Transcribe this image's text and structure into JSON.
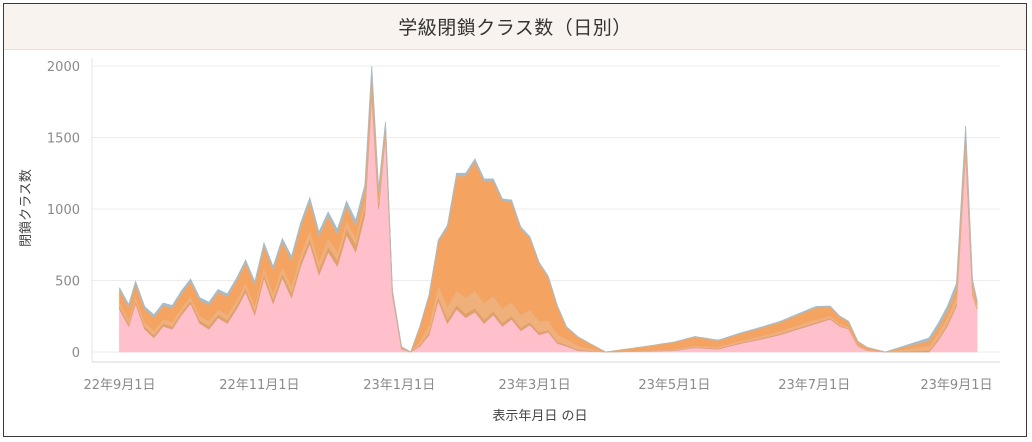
{
  "chart_data": {
    "type": "area",
    "title": "学級閉鎖クラス数（日別）",
    "xlabel": "表示年月日 の日",
    "ylabel": "閉鎖クラス数",
    "ylim": [
      0,
      2000
    ],
    "y_ticks": [
      "0",
      "500",
      "1000",
      "1500",
      "2000"
    ],
    "x_ticks": [
      "22年9月1日",
      "22年11月1日",
      "23年1月1日",
      "23年3月1日",
      "23年5月1日",
      "23年7月1日",
      "23年9月1日"
    ],
    "x_tick_dates": [
      "2022-09-01",
      "2022-11-01",
      "2023-01-01",
      "2023-03-01",
      "2023-05-01",
      "2023-07-01",
      "2023-09-01"
    ],
    "x_range": [
      "2022-08-20",
      "2023-09-20"
    ],
    "grid": true,
    "stacking": "stacked",
    "series_colors": [
      "#ffc0cb",
      "#e0a068",
      "#f0b07c",
      "#f4a460",
      "#a8bcc8"
    ],
    "series": [
      {
        "color": "#ffc0cb",
        "points": [
          [
            "2022-09-01",
            300
          ],
          [
            "2022-09-05",
            180
          ],
          [
            "2022-09-08",
            340
          ],
          [
            "2022-09-12",
            160
          ],
          [
            "2022-09-16",
            100
          ],
          [
            "2022-09-20",
            180
          ],
          [
            "2022-09-24",
            160
          ],
          [
            "2022-09-28",
            260
          ],
          [
            "2022-10-02",
            340
          ],
          [
            "2022-10-06",
            200
          ],
          [
            "2022-10-10",
            160
          ],
          [
            "2022-10-14",
            240
          ],
          [
            "2022-10-18",
            200
          ],
          [
            "2022-10-22",
            300
          ],
          [
            "2022-10-26",
            420
          ],
          [
            "2022-10-30",
            260
          ],
          [
            "2022-11-03",
            520
          ],
          [
            "2022-11-07",
            340
          ],
          [
            "2022-11-11",
            520
          ],
          [
            "2022-11-15",
            380
          ],
          [
            "2022-11-19",
            600
          ],
          [
            "2022-11-23",
            760
          ],
          [
            "2022-11-27",
            540
          ],
          [
            "2022-12-01",
            700
          ],
          [
            "2022-12-05",
            600
          ],
          [
            "2022-12-09",
            820
          ],
          [
            "2022-12-13",
            700
          ],
          [
            "2022-12-17",
            960
          ],
          [
            "2022-12-20",
            1800
          ],
          [
            "2022-12-23",
            1000
          ],
          [
            "2022-12-26",
            1520
          ],
          [
            "2022-12-29",
            400
          ],
          [
            "2023-01-02",
            20
          ],
          [
            "2023-01-06",
            0
          ],
          [
            "2023-01-10",
            40
          ],
          [
            "2023-01-14",
            120
          ],
          [
            "2023-01-18",
            360
          ],
          [
            "2023-01-22",
            200
          ],
          [
            "2023-01-26",
            300
          ],
          [
            "2023-01-30",
            240
          ],
          [
            "2023-02-03",
            280
          ],
          [
            "2023-02-07",
            200
          ],
          [
            "2023-02-11",
            260
          ],
          [
            "2023-02-15",
            180
          ],
          [
            "2023-02-19",
            230
          ],
          [
            "2023-02-23",
            150
          ],
          [
            "2023-02-27",
            190
          ],
          [
            "2023-03-03",
            120
          ],
          [
            "2023-03-07",
            140
          ],
          [
            "2023-03-11",
            60
          ],
          [
            "2023-03-15",
            40
          ],
          [
            "2023-03-20",
            10
          ],
          [
            "2023-04-01",
            0
          ],
          [
            "2023-04-20",
            5
          ],
          [
            "2023-05-01",
            10
          ],
          [
            "2023-05-10",
            30
          ],
          [
            "2023-05-20",
            20
          ],
          [
            "2023-05-30",
            60
          ],
          [
            "2023-06-08",
            90
          ],
          [
            "2023-06-16",
            120
          ],
          [
            "2023-06-24",
            160
          ],
          [
            "2023-07-02",
            200
          ],
          [
            "2023-07-08",
            230
          ],
          [
            "2023-07-12",
            180
          ],
          [
            "2023-07-16",
            160
          ],
          [
            "2023-07-20",
            40
          ],
          [
            "2023-07-24",
            10
          ],
          [
            "2023-08-01",
            0
          ],
          [
            "2023-08-20",
            0
          ],
          [
            "2023-08-24",
            80
          ],
          [
            "2023-08-28",
            180
          ],
          [
            "2023-09-01",
            320
          ],
          [
            "2023-09-05",
            1400
          ],
          [
            "2023-09-08",
            400
          ],
          [
            "2023-09-10",
            300
          ]
        ]
      },
      {
        "color": "#e0a068",
        "points": [
          [
            "2022-09-01",
            20
          ],
          [
            "2022-10-01",
            20
          ],
          [
            "2022-11-01",
            30
          ],
          [
            "2022-12-01",
            40
          ],
          [
            "2022-12-20",
            60
          ],
          [
            "2022-12-29",
            10
          ],
          [
            "2023-01-06",
            0
          ],
          [
            "2023-01-18",
            30
          ],
          [
            "2023-02-03",
            30
          ],
          [
            "2023-02-27",
            20
          ],
          [
            "2023-03-15",
            10
          ],
          [
            "2023-04-01",
            0
          ],
          [
            "2023-07-01",
            10
          ],
          [
            "2023-08-01",
            0
          ],
          [
            "2023-09-05",
            20
          ],
          [
            "2023-09-10",
            10
          ]
        ]
      },
      {
        "color": "#f0b07c",
        "points": [
          [
            "2022-09-01",
            30
          ],
          [
            "2022-10-01",
            30
          ],
          [
            "2022-11-01",
            40
          ],
          [
            "2022-12-01",
            60
          ],
          [
            "2022-12-20",
            40
          ],
          [
            "2022-12-29",
            10
          ],
          [
            "2023-01-06",
            0
          ],
          [
            "2023-01-18",
            80
          ],
          [
            "2023-02-03",
            120
          ],
          [
            "2023-02-15",
            100
          ],
          [
            "2023-03-03",
            80
          ],
          [
            "2023-03-15",
            40
          ],
          [
            "2023-04-01",
            0
          ],
          [
            "2023-05-10",
            10
          ],
          [
            "2023-07-01",
            20
          ],
          [
            "2023-08-01",
            0
          ],
          [
            "2023-09-05",
            60
          ],
          [
            "2023-09-10",
            20
          ]
        ]
      },
      {
        "color": "#f4a460",
        "points": [
          [
            "2022-09-01",
            80
          ],
          [
            "2022-10-02",
            100
          ],
          [
            "2022-11-03",
            150
          ],
          [
            "2022-11-23",
            200
          ],
          [
            "2022-12-09",
            100
          ],
          [
            "2022-12-20",
            60
          ],
          [
            "2022-12-29",
            10
          ],
          [
            "2023-01-06",
            0
          ],
          [
            "2023-01-18",
            300
          ],
          [
            "2023-01-26",
            800
          ],
          [
            "2023-02-03",
            900
          ],
          [
            "2023-02-11",
            800
          ],
          [
            "2023-02-19",
            700
          ],
          [
            "2023-02-27",
            500
          ],
          [
            "2023-03-07",
            300
          ],
          [
            "2023-03-15",
            80
          ],
          [
            "2023-04-01",
            0
          ],
          [
            "2023-05-10",
            60
          ],
          [
            "2023-05-20",
            40
          ],
          [
            "2023-06-16",
            60
          ],
          [
            "2023-07-02",
            80
          ],
          [
            "2023-07-20",
            20
          ],
          [
            "2023-08-01",
            0
          ],
          [
            "2023-09-05",
            60
          ],
          [
            "2023-09-10",
            20
          ]
        ]
      },
      {
        "color": "#a8bcc8",
        "points": [
          [
            "2022-09-01",
            20
          ],
          [
            "2022-10-01",
            20
          ],
          [
            "2022-11-01",
            20
          ],
          [
            "2022-12-01",
            30
          ],
          [
            "2022-12-20",
            40
          ],
          [
            "2022-12-29",
            5
          ],
          [
            "2023-01-06",
            0
          ],
          [
            "2023-01-26",
            20
          ],
          [
            "2023-02-03",
            20
          ],
          [
            "2023-03-03",
            10
          ],
          [
            "2023-04-01",
            0
          ],
          [
            "2023-07-01",
            10
          ],
          [
            "2023-08-01",
            0
          ],
          [
            "2023-09-05",
            40
          ],
          [
            "2023-09-10",
            10
          ]
        ]
      }
    ]
  }
}
